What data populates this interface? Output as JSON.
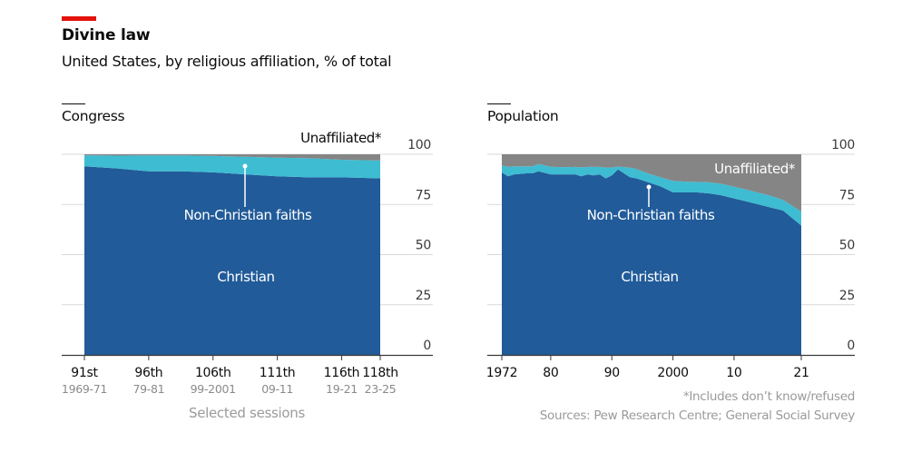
{
  "header": {
    "title": "Divine law",
    "subtitle": "United States, by religious affiliation, % of total"
  },
  "colors": {
    "accent": "#e3120b",
    "christian": "#215b99",
    "non_christian": "#3ebcd2",
    "unaffiliated": "#858585",
    "gridline": "#d9d9d9",
    "axis": "#3a3a3a"
  },
  "chart_data": [
    {
      "type": "area",
      "stacked": true,
      "title": "Congress",
      "xlabel": "Selected sessions",
      "ylabel": "",
      "ylim": [
        0,
        100
      ],
      "yticks": [
        0,
        25,
        50,
        75,
        100
      ],
      "grid": true,
      "x_ticks": [
        {
          "pos": 0,
          "label": "91st",
          "sub": "1969-71"
        },
        {
          "pos": 1,
          "label": "96th",
          "sub": "79-81"
        },
        {
          "pos": 2,
          "label": "106th",
          "sub": "99-2001"
        },
        {
          "pos": 3,
          "label": "111th",
          "sub": "09-11"
        },
        {
          "pos": 4,
          "label": "116th",
          "sub": "19-21"
        },
        {
          "pos": 4.6,
          "label": "118th",
          "sub": "23-25"
        }
      ],
      "x": [
        0,
        0.5,
        1,
        1.5,
        2,
        2.5,
        3,
        3.5,
        4,
        4.6
      ],
      "series": [
        {
          "name": "Christian",
          "values": [
            94,
            93,
            91.5,
            91.5,
            91,
            90,
            89,
            88.5,
            88.5,
            88
          ]
        },
        {
          "name": "Non-Christian faiths",
          "values": [
            5.5,
            6.3,
            7.9,
            7.9,
            8.2,
            8.8,
            9.3,
            9.5,
            8.8,
            8.9
          ]
        },
        {
          "name": "Unaffiliated*",
          "values": [
            0.5,
            0.7,
            0.6,
            0.6,
            0.8,
            1.2,
            1.7,
            2,
            2.7,
            3.1
          ]
        }
      ],
      "labels": {
        "unaffiliated": "Unaffiliated*",
        "non_christian": "Non-Christian faiths",
        "christian": "Christian"
      }
    },
    {
      "type": "area",
      "stacked": true,
      "title": "Population",
      "xlabel": "",
      "ylabel": "",
      "ylim": [
        0,
        100
      ],
      "xlim": [
        1972,
        2021
      ],
      "yticks": [
        0,
        25,
        50,
        75,
        100
      ],
      "grid": true,
      "x_ticks": [
        {
          "value": 1972,
          "label": "1972"
        },
        {
          "value": 1980,
          "label": "80"
        },
        {
          "value": 1990,
          "label": "90"
        },
        {
          "value": 2000,
          "label": "2000"
        },
        {
          "value": 2010,
          "label": "10"
        },
        {
          "value": 2021,
          "label": "21"
        }
      ],
      "x": [
        1972,
        1973,
        1974,
        1976,
        1977,
        1978,
        1980,
        1982,
        1983,
        1984,
        1985,
        1986,
        1987,
        1988,
        1989,
        1990,
        1991,
        1993,
        1994,
        1996,
        1998,
        2000,
        2002,
        2004,
        2006,
        2008,
        2010,
        2012,
        2014,
        2016,
        2018,
        2021
      ],
      "series": [
        {
          "name": "Christian",
          "values": [
            91,
            89,
            90,
            90.5,
            90.5,
            91.5,
            90,
            90,
            90,
            90,
            89,
            90,
            89.5,
            90,
            88,
            89.5,
            92.5,
            88.5,
            88,
            86,
            84,
            81,
            81,
            81,
            80.5,
            79.5,
            78,
            76.5,
            75,
            73.5,
            72,
            64.5
          ]
        },
        {
          "name": "Non-Christian faiths",
          "values": [
            3.5,
            4.7,
            4,
            3.5,
            3.5,
            3.7,
            3.8,
            3.6,
            3.6,
            3.7,
            4.5,
            3.7,
            4.2,
            3.7,
            5.4,
            3.9,
            1.4,
            4.8,
            4.7,
            4.4,
            4.5,
            5.8,
            5.4,
            5.2,
            5.5,
            5.8,
            5.8,
            5.9,
            5.8,
            5.8,
            5.3,
            7
          ]
        },
        {
          "name": "Unaffiliated*",
          "values": [
            5.5,
            6.3,
            6,
            6,
            6,
            4.8,
            6.2,
            6.4,
            6.4,
            6.3,
            6.5,
            6.3,
            6.3,
            6.3,
            6.6,
            6.6,
            6.1,
            6.7,
            7.3,
            9.6,
            11.5,
            13.2,
            13.6,
            13.8,
            14,
            14.7,
            16.2,
            17.6,
            19.2,
            20.7,
            22.7,
            28.5
          ]
        }
      ],
      "labels": {
        "unaffiliated": "Unaffiliated*",
        "non_christian": "Non-Christian faiths",
        "christian": "Christian"
      }
    }
  ],
  "footnotes": {
    "asterisk": "*Includes don’t know/refused",
    "sources": "Sources: Pew Research Centre; General Social Survey"
  }
}
